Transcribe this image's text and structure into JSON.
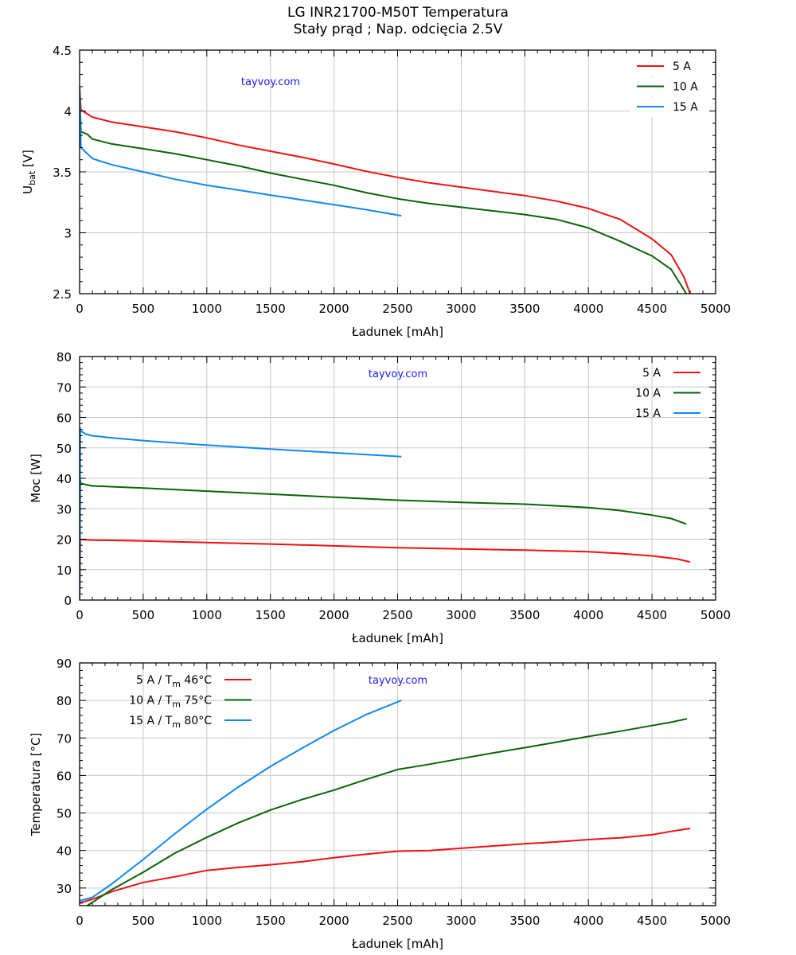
{
  "title": {
    "line1": "LG INR21700-M50T Temperatura",
    "line2": "Stały prąd  ; Nap. odcięcia 2.5V"
  },
  "colors": {
    "5A": "#ee1111",
    "10A": "#0a640a",
    "15A": "#1188ee",
    "watermark": "#1a1aee",
    "grid": "#c8c8c8"
  },
  "watermark": "tayvoy.com",
  "chart_data": [
    {
      "type": "line",
      "title": "LG INR21700-M50T Temperatura",
      "xlabel": "Ładunek [mAh]",
      "ylabel": "U",
      "ylabel_sub": "bat",
      "ylabel_unit": " [V]",
      "xlim": [
        0,
        5000
      ],
      "ylim": [
        2.5,
        4.5
      ],
      "xticks": [
        0,
        500,
        1000,
        1500,
        2000,
        2500,
        3000,
        3500,
        4000,
        4500,
        5000
      ],
      "yticks": [
        2.5,
        3,
        3.5,
        4,
        4.5
      ],
      "ytick_labels": [
        "2.5",
        "3",
        "3.5",
        "4",
        "4.5"
      ],
      "x_minor_step": 100,
      "y_minor_step": 0.1,
      "grid": true,
      "legend": "top-right",
      "legend_style": "line-then-label",
      "series": [
        {
          "name": "5 A",
          "color_key": "5A",
          "x": [
            0,
            10,
            100,
            250,
            500,
            750,
            1000,
            1250,
            1500,
            1750,
            2000,
            2250,
            2500,
            2750,
            3000,
            3250,
            3500,
            3750,
            4000,
            4250,
            4500,
            4650,
            4750,
            4800
          ],
          "y": [
            4.19,
            4.01,
            3.95,
            3.91,
            3.87,
            3.83,
            3.78,
            3.72,
            3.67,
            3.62,
            3.565,
            3.505,
            3.455,
            3.41,
            3.375,
            3.34,
            3.305,
            3.26,
            3.2,
            3.11,
            2.95,
            2.82,
            2.64,
            2.5
          ]
        },
        {
          "name": "10 A",
          "color_key": "10A",
          "x": [
            0,
            10,
            60,
            100,
            250,
            500,
            750,
            1000,
            1250,
            1500,
            1750,
            2000,
            2250,
            2500,
            2750,
            3000,
            3250,
            3500,
            3750,
            4000,
            4250,
            4500,
            4650,
            4770
          ],
          "y": [
            4.19,
            3.83,
            3.81,
            3.77,
            3.73,
            3.69,
            3.65,
            3.6,
            3.55,
            3.49,
            3.44,
            3.39,
            3.33,
            3.28,
            3.24,
            3.21,
            3.18,
            3.15,
            3.11,
            3.04,
            2.93,
            2.81,
            2.7,
            2.5
          ]
        },
        {
          "name": "15 A",
          "color_key": "15A",
          "x": [
            0,
            10,
            100,
            250,
            500,
            750,
            1000,
            1250,
            1500,
            1750,
            2000,
            2250,
            2530
          ],
          "y": [
            4.2,
            3.7,
            3.61,
            3.56,
            3.5,
            3.44,
            3.39,
            3.35,
            3.31,
            3.27,
            3.23,
            3.19,
            3.14
          ]
        }
      ]
    },
    {
      "type": "line",
      "xlabel": "Ładunek [mAh]",
      "ylabel": "Moc [W]",
      "xlim": [
        0,
        5000
      ],
      "ylim": [
        0,
        80
      ],
      "xticks": [
        0,
        500,
        1000,
        1500,
        2000,
        2500,
        3000,
        3500,
        4000,
        4500,
        5000
      ],
      "yticks": [
        0,
        10,
        20,
        30,
        40,
        50,
        60,
        70,
        80
      ],
      "ytick_labels": [
        "0",
        "10",
        "20",
        "30",
        "40",
        "50",
        "60",
        "70",
        "80"
      ],
      "x_minor_step": 100,
      "y_minor_step": 2,
      "grid": true,
      "legend": "top-right",
      "legend_style": "label-then-line",
      "series": [
        {
          "name": "5 A",
          "color_key": "5A",
          "x": [
            0,
            5,
            10,
            100,
            500,
            1000,
            1500,
            2000,
            2500,
            3000,
            3500,
            4000,
            4250,
            4500,
            4700,
            4800
          ],
          "y": [
            0,
            20,
            19.9,
            19.7,
            19.4,
            18.9,
            18.4,
            17.8,
            17.2,
            16.8,
            16.4,
            15.9,
            15.3,
            14.5,
            13.5,
            12.5
          ]
        },
        {
          "name": "10 A",
          "color_key": "10A",
          "x": [
            0,
            5,
            10,
            100,
            500,
            1000,
            1500,
            2000,
            2500,
            3000,
            3500,
            4000,
            4250,
            4500,
            4650,
            4770
          ],
          "y": [
            0,
            39.5,
            38.3,
            37.5,
            36.8,
            35.8,
            34.8,
            33.8,
            32.8,
            32.1,
            31.5,
            30.4,
            29.4,
            27.9,
            26.8,
            25
          ]
        },
        {
          "name": "15 A",
          "color_key": "15A",
          "x": [
            0,
            5,
            10,
            50,
            100,
            250,
            500,
            1000,
            1500,
            2000,
            2530
          ],
          "y": [
            0,
            56.5,
            55.5,
            54.5,
            54,
            53.3,
            52.4,
            50.9,
            49.6,
            48.4,
            47.1
          ]
        }
      ]
    },
    {
      "type": "line",
      "xlabel": "Ładunek [mAh]",
      "ylabel": "Temperatura [°C]",
      "xlim": [
        0,
        5000
      ],
      "ylim": [
        25.3,
        90
      ],
      "xticks": [
        0,
        500,
        1000,
        1500,
        2000,
        2500,
        3000,
        3500,
        4000,
        4500,
        5000
      ],
      "yticks": [
        30,
        40,
        50,
        60,
        70,
        80,
        90
      ],
      "ytick_labels": [
        "30",
        "40",
        "50",
        "60",
        "70",
        "80",
        "90"
      ],
      "x_minor_step": 100,
      "y_minor_step": 2,
      "grid": true,
      "legend": "top-left",
      "legend_style": "label-then-line",
      "series": [
        {
          "name": "5 A  / T",
          "name_sub": "m",
          "name_suffix": " 46°C",
          "color_key": "5A",
          "x": [
            0,
            100,
            250,
            500,
            750,
            1000,
            1250,
            1500,
            1750,
            2000,
            2250,
            2500,
            2750,
            3000,
            3250,
            3500,
            3750,
            4000,
            4250,
            4500,
            4650,
            4800
          ],
          "y": [
            26,
            27,
            29,
            31.5,
            33,
            34.7,
            35.5,
            36.2,
            37,
            38.1,
            39,
            39.8,
            40,
            40.6,
            41.2,
            41.8,
            42.3,
            42.9,
            43.4,
            44.2,
            45.1,
            45.9
          ]
        },
        {
          "name": "10 A  / T",
          "name_sub": "m",
          "name_suffix": " 75°C",
          "color_key": "10A",
          "x": [
            60,
            250,
            500,
            750,
            1000,
            1250,
            1500,
            1750,
            2000,
            2250,
            2500,
            2750,
            3000,
            3250,
            3500,
            3750,
            4000,
            4250,
            4500,
            4650,
            4775
          ],
          "y": [
            25.3,
            29.5,
            34.2,
            39.3,
            43.5,
            47.4,
            50.8,
            53.6,
            56.1,
            58.9,
            61.6,
            63,
            64.5,
            66,
            67.4,
            68.9,
            70.4,
            71.8,
            73.3,
            74.2,
            75.1
          ]
        },
        {
          "name": "15 A  / T",
          "name_sub": "m",
          "name_suffix": " 80°C",
          "color_key": "15A",
          "x": [
            0,
            100,
            250,
            500,
            750,
            1000,
            1250,
            1500,
            1750,
            2000,
            2250,
            2530
          ],
          "y": [
            26.6,
            27.5,
            31,
            37.6,
            44.5,
            51,
            57,
            62.4,
            67.3,
            72,
            76.2,
            80
          ]
        }
      ]
    }
  ]
}
